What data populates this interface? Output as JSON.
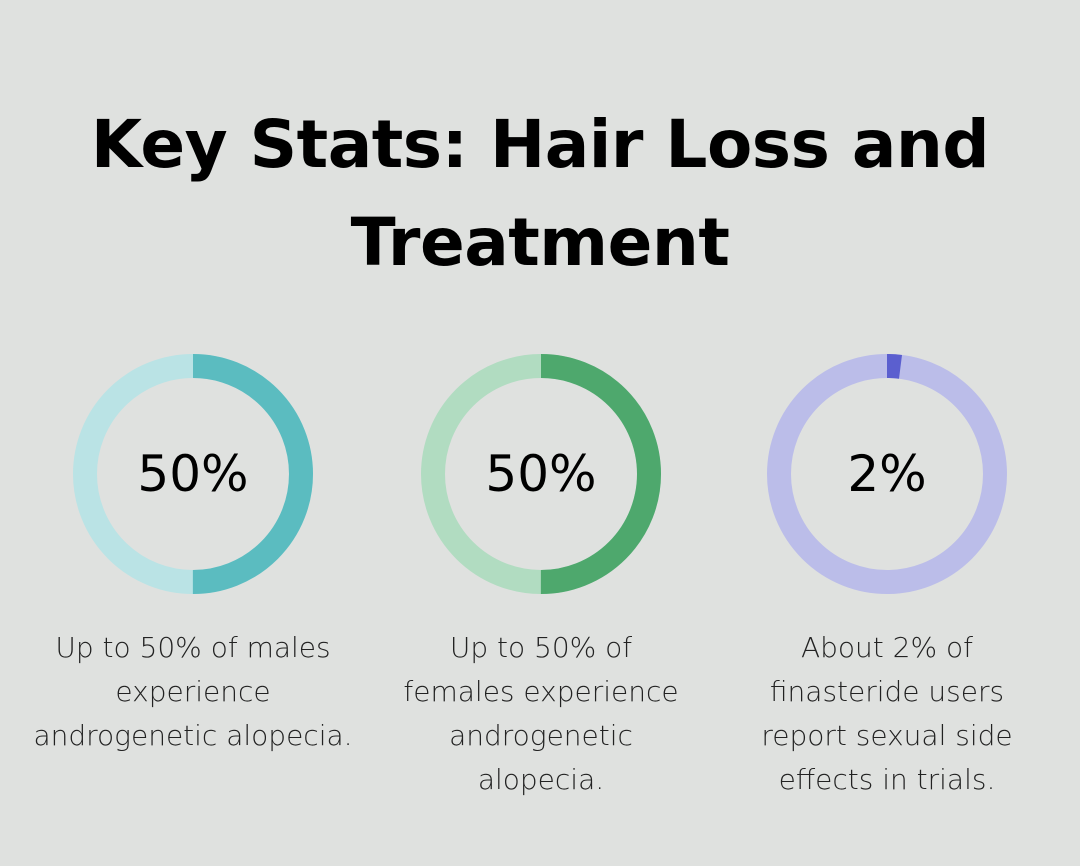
{
  "title": "Key Stats: Hair Loss and Treatment",
  "chart_data": {
    "type": "pie",
    "title": "Key Stats: Hair Loss and Treatment",
    "series": [
      {
        "name": "males",
        "value": 50,
        "label": "50%",
        "description": "Up to 50% of males experience androgenetic alopecia.",
        "color": "#5bbcc0",
        "track_color": "#bae3e5"
      },
      {
        "name": "females",
        "value": 50,
        "label": "50%",
        "description": "Up to 50% of females experience androgenetic alopecia.",
        "color": "#4ea86d",
        "track_color": "#b1dcc1"
      },
      {
        "name": "finasteride",
        "value": 2,
        "label": "2%",
        "description": "About 2% of finasteride users report sexual side effects in trials.",
        "color": "#5b5fcf",
        "track_color": "#bbbde9"
      }
    ]
  }
}
